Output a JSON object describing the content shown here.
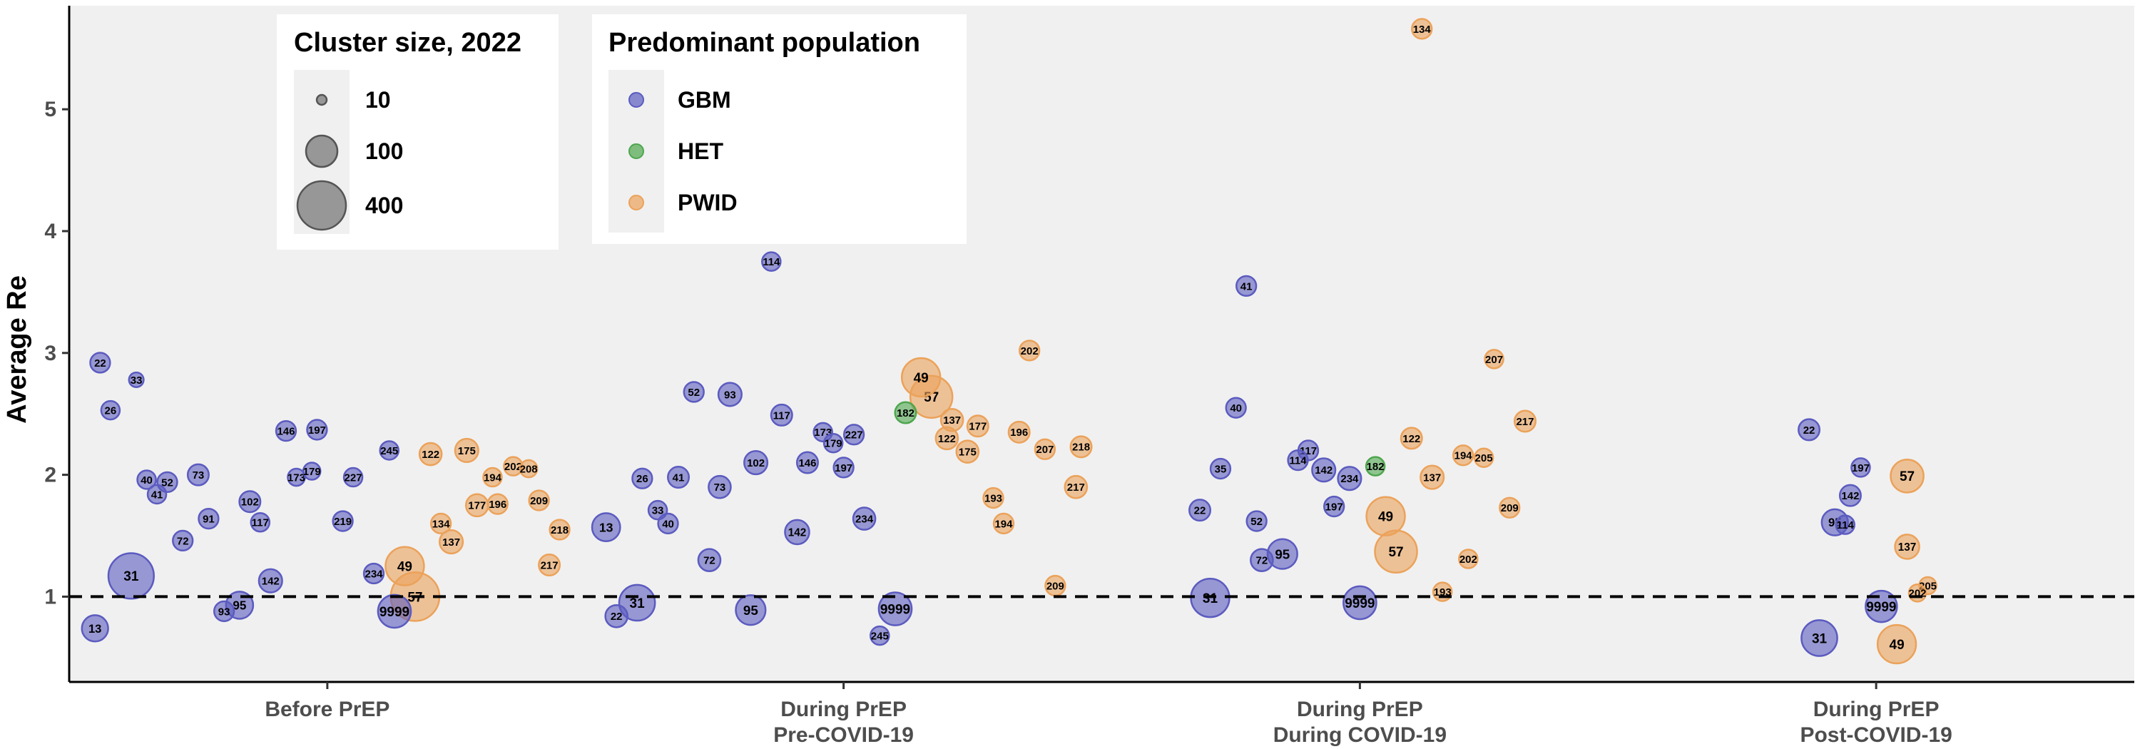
{
  "chart_data": {
    "type": "scatter",
    "ylabel": "Average Re",
    "xlabel": "",
    "ylim": [
      0.3,
      5.85
    ],
    "yticks": [
      1,
      2,
      3,
      4,
      5
    ],
    "reference_line": 1,
    "grid": false,
    "categories": [
      "Before PrEP",
      "During PrEP\nPre-COVID-19",
      "During PrEP\nDuring COVID-19",
      "During PrEP\nPost-COVID-19"
    ],
    "colors": {
      "GBM": "#5b5bc0",
      "HET": "#4ea64e",
      "PWID": "#eba25a"
    },
    "legend_size": {
      "title": "Cluster size, 2022",
      "entries": [
        {
          "label": "10",
          "value": 10
        },
        {
          "label": "100",
          "value": 100
        },
        {
          "label": "400",
          "value": 400
        }
      ]
    },
    "legend_population": {
      "title": "Predominant population",
      "entries": [
        "GBM",
        "HET",
        "PWID"
      ]
    },
    "series": [
      {
        "period": "Before PrEP",
        "points": [
          {
            "id": "22",
            "pop": "GBM",
            "offset": -0.44,
            "y": 2.92,
            "size": 40
          },
          {
            "id": "33",
            "pop": "GBM",
            "offset": -0.37,
            "y": 2.78,
            "size": 22
          },
          {
            "id": "26",
            "pop": "GBM",
            "offset": -0.42,
            "y": 2.53,
            "size": 35
          },
          {
            "id": "40",
            "pop": "GBM",
            "offset": -0.35,
            "y": 1.96,
            "size": 35
          },
          {
            "id": "52",
            "pop": "GBM",
            "offset": -0.31,
            "y": 1.94,
            "size": 40
          },
          {
            "id": "73",
            "pop": "GBM",
            "offset": -0.25,
            "y": 2.0,
            "size": 45
          },
          {
            "id": "41",
            "pop": "GBM",
            "offset": -0.33,
            "y": 1.84,
            "size": 35
          },
          {
            "id": "91",
            "pop": "GBM",
            "offset": -0.23,
            "y": 1.64,
            "size": 40
          },
          {
            "id": "102",
            "pop": "GBM",
            "offset": -0.15,
            "y": 1.78,
            "size": 45
          },
          {
            "id": "117",
            "pop": "GBM",
            "offset": -0.13,
            "y": 1.61,
            "size": 35
          },
          {
            "id": "72",
            "pop": "GBM",
            "offset": -0.28,
            "y": 1.46,
            "size": 40
          },
          {
            "id": "146",
            "pop": "GBM",
            "offset": -0.08,
            "y": 2.36,
            "size": 40
          },
          {
            "id": "197",
            "pop": "GBM",
            "offset": -0.02,
            "y": 2.37,
            "size": 40
          },
          {
            "id": "173",
            "pop": "GBM",
            "offset": -0.06,
            "y": 1.98,
            "size": 30
          },
          {
            "id": "179",
            "pop": "GBM",
            "offset": -0.03,
            "y": 2.03,
            "size": 30
          },
          {
            "id": "227",
            "pop": "GBM",
            "offset": 0.05,
            "y": 1.98,
            "size": 35
          },
          {
            "id": "245",
            "pop": "GBM",
            "offset": 0.12,
            "y": 2.2,
            "size": 35
          },
          {
            "id": "219",
            "pop": "GBM",
            "offset": 0.03,
            "y": 1.62,
            "size": 40
          },
          {
            "id": "234",
            "pop": "GBM",
            "offset": 0.09,
            "y": 1.19,
            "size": 40
          },
          {
            "id": "142",
            "pop": "GBM",
            "offset": -0.11,
            "y": 1.13,
            "size": 55
          },
          {
            "id": "31",
            "pop": "GBM",
            "offset": -0.38,
            "y": 1.17,
            "size": 210
          },
          {
            "id": "13",
            "pop": "GBM",
            "offset": -0.45,
            "y": 0.74,
            "size": 70
          },
          {
            "id": "93",
            "pop": "GBM",
            "offset": -0.2,
            "y": 0.88,
            "size": 40
          },
          {
            "id": "95",
            "pop": "GBM",
            "offset": -0.17,
            "y": 0.93,
            "size": 75
          },
          {
            "id": "9999",
            "pop": "GBM",
            "offset": 0.13,
            "y": 0.88,
            "size": 110
          },
          {
            "id": "122",
            "pop": "PWID",
            "offset": 0.2,
            "y": 2.17,
            "size": 50
          },
          {
            "id": "175",
            "pop": "PWID",
            "offset": 0.27,
            "y": 2.2,
            "size": 55
          },
          {
            "id": "202",
            "pop": "PWID",
            "offset": 0.36,
            "y": 2.07,
            "size": 35
          },
          {
            "id": "208",
            "pop": "PWID",
            "offset": 0.39,
            "y": 2.05,
            "size": 30
          },
          {
            "id": "194",
            "pop": "PWID",
            "offset": 0.32,
            "y": 1.98,
            "size": 35
          },
          {
            "id": "209",
            "pop": "PWID",
            "offset": 0.41,
            "y": 1.79,
            "size": 40
          },
          {
            "id": "177",
            "pop": "PWID",
            "offset": 0.29,
            "y": 1.75,
            "size": 50
          },
          {
            "id": "196",
            "pop": "PWID",
            "offset": 0.33,
            "y": 1.76,
            "size": 40
          },
          {
            "id": "134",
            "pop": "PWID",
            "offset": 0.22,
            "y": 1.6,
            "size": 40
          },
          {
            "id": "137",
            "pop": "PWID",
            "offset": 0.24,
            "y": 1.45,
            "size": 55
          },
          {
            "id": "218",
            "pop": "PWID",
            "offset": 0.45,
            "y": 1.55,
            "size": 40
          },
          {
            "id": "217",
            "pop": "PWID",
            "offset": 0.43,
            "y": 1.26,
            "size": 45
          },
          {
            "id": "49",
            "pop": "PWID",
            "offset": 0.15,
            "y": 1.25,
            "size": 150
          },
          {
            "id": "57",
            "pop": "PWID",
            "offset": 0.17,
            "y": 1.0,
            "size": 240
          }
        ]
      },
      {
        "period": "During PrEP\nPre-COVID-19",
        "points": [
          {
            "id": "114",
            "pop": "GBM",
            "offset": -0.14,
            "y": 3.75,
            "size": 35
          },
          {
            "id": "52",
            "pop": "GBM",
            "offset": -0.29,
            "y": 2.68,
            "size": 40
          },
          {
            "id": "93",
            "pop": "GBM",
            "offset": -0.22,
            "y": 2.66,
            "size": 55
          },
          {
            "id": "117",
            "pop": "GBM",
            "offset": -0.12,
            "y": 2.49,
            "size": 45
          },
          {
            "id": "173",
            "pop": "GBM",
            "offset": -0.04,
            "y": 2.35,
            "size": 35
          },
          {
            "id": "179",
            "pop": "GBM",
            "offset": -0.02,
            "y": 2.26,
            "size": 35
          },
          {
            "id": "227",
            "pop": "GBM",
            "offset": 0.02,
            "y": 2.33,
            "size": 40
          },
          {
            "id": "102",
            "pop": "GBM",
            "offset": -0.17,
            "y": 2.1,
            "size": 55
          },
          {
            "id": "146",
            "pop": "GBM",
            "offset": -0.07,
            "y": 2.1,
            "size": 45
          },
          {
            "id": "197",
            "pop": "GBM",
            "offset": -0.0,
            "y": 2.06,
            "size": 40
          },
          {
            "id": "26",
            "pop": "GBM",
            "offset": -0.39,
            "y": 1.97,
            "size": 40
          },
          {
            "id": "41",
            "pop": "GBM",
            "offset": -0.32,
            "y": 1.98,
            "size": 45
          },
          {
            "id": "73",
            "pop": "GBM",
            "offset": -0.24,
            "y": 1.9,
            "size": 50
          },
          {
            "id": "33",
            "pop": "GBM",
            "offset": -0.36,
            "y": 1.71,
            "size": 35
          },
          {
            "id": "40",
            "pop": "GBM",
            "offset": -0.34,
            "y": 1.6,
            "size": 40
          },
          {
            "id": "13",
            "pop": "GBM",
            "offset": -0.46,
            "y": 1.57,
            "size": 80
          },
          {
            "id": "142",
            "pop": "GBM",
            "offset": -0.09,
            "y": 1.53,
            "size": 60
          },
          {
            "id": "234",
            "pop": "GBM",
            "offset": 0.04,
            "y": 1.64,
            "size": 50
          },
          {
            "id": "72",
            "pop": "GBM",
            "offset": -0.26,
            "y": 1.3,
            "size": 50
          },
          {
            "id": "22",
            "pop": "GBM",
            "offset": -0.44,
            "y": 0.84,
            "size": 50
          },
          {
            "id": "31",
            "pop": "GBM",
            "offset": -0.4,
            "y": 0.95,
            "size": 130
          },
          {
            "id": "95",
            "pop": "GBM",
            "offset": -0.18,
            "y": 0.89,
            "size": 90
          },
          {
            "id": "9999",
            "pop": "GBM",
            "offset": 0.1,
            "y": 0.9,
            "size": 110
          },
          {
            "id": "245",
            "pop": "GBM",
            "offset": 0.07,
            "y": 0.68,
            "size": 35
          },
          {
            "id": "182",
            "pop": "HET",
            "offset": 0.12,
            "y": 2.51,
            "size": 45
          },
          {
            "id": "49",
            "pop": "PWID",
            "offset": 0.15,
            "y": 2.8,
            "size": 150
          },
          {
            "id": "57",
            "pop": "PWID",
            "offset": 0.17,
            "y": 2.64,
            "size": 180
          },
          {
            "id": "137",
            "pop": "PWID",
            "offset": 0.21,
            "y": 2.45,
            "size": 50
          },
          {
            "id": "177",
            "pop": "PWID",
            "offset": 0.26,
            "y": 2.4,
            "size": 45
          },
          {
            "id": "122",
            "pop": "PWID",
            "offset": 0.2,
            "y": 2.3,
            "size": 50
          },
          {
            "id": "175",
            "pop": "PWID",
            "offset": 0.24,
            "y": 2.19,
            "size": 50
          },
          {
            "id": "202",
            "pop": "PWID",
            "offset": 0.36,
            "y": 3.02,
            "size": 40
          },
          {
            "id": "196",
            "pop": "PWID",
            "offset": 0.34,
            "y": 2.35,
            "size": 45
          },
          {
            "id": "207",
            "pop": "PWID",
            "offset": 0.39,
            "y": 2.21,
            "size": 40
          },
          {
            "id": "218",
            "pop": "PWID",
            "offset": 0.46,
            "y": 2.23,
            "size": 45
          },
          {
            "id": "193",
            "pop": "PWID",
            "offset": 0.29,
            "y": 1.81,
            "size": 40
          },
          {
            "id": "217",
            "pop": "PWID",
            "offset": 0.45,
            "y": 1.9,
            "size": 50
          },
          {
            "id": "194",
            "pop": "PWID",
            "offset": 0.31,
            "y": 1.6,
            "size": 40
          },
          {
            "id": "209",
            "pop": "PWID",
            "offset": 0.41,
            "y": 1.09,
            "size": 40
          }
        ]
      },
      {
        "period": "During PrEP\nDuring COVID-19",
        "points": [
          {
            "id": "134",
            "pop": "PWID",
            "offset": 0.12,
            "y": 5.66,
            "size": 40
          },
          {
            "id": "41",
            "pop": "GBM",
            "offset": -0.22,
            "y": 3.55,
            "size": 40
          },
          {
            "id": "40",
            "pop": "GBM",
            "offset": -0.24,
            "y": 2.55,
            "size": 40
          },
          {
            "id": "35",
            "pop": "GBM",
            "offset": -0.27,
            "y": 2.05,
            "size": 40
          },
          {
            "id": "117",
            "pop": "GBM",
            "offset": -0.1,
            "y": 2.2,
            "size": 40
          },
          {
            "id": "114",
            "pop": "GBM",
            "offset": -0.12,
            "y": 2.12,
            "size": 40
          },
          {
            "id": "142",
            "pop": "GBM",
            "offset": -0.07,
            "y": 2.04,
            "size": 55
          },
          {
            "id": "234",
            "pop": "GBM",
            "offset": -0.02,
            "y": 1.97,
            "size": 55
          },
          {
            "id": "197",
            "pop": "GBM",
            "offset": -0.05,
            "y": 1.74,
            "size": 40
          },
          {
            "id": "22",
            "pop": "GBM",
            "offset": -0.31,
            "y": 1.71,
            "size": 45
          },
          {
            "id": "52",
            "pop": "GBM",
            "offset": -0.2,
            "y": 1.62,
            "size": 40
          },
          {
            "id": "72",
            "pop": "GBM",
            "offset": -0.19,
            "y": 1.3,
            "size": 50
          },
          {
            "id": "95",
            "pop": "GBM",
            "offset": -0.15,
            "y": 1.35,
            "size": 90
          },
          {
            "id": "31",
            "pop": "GBM",
            "offset": -0.29,
            "y": 0.99,
            "size": 150
          },
          {
            "id": "9999",
            "pop": "GBM",
            "offset": 0.0,
            "y": 0.95,
            "size": 110
          },
          {
            "id": "182",
            "pop": "HET",
            "offset": 0.03,
            "y": 2.07,
            "size": 35
          },
          {
            "id": "122",
            "pop": "PWID",
            "offset": 0.1,
            "y": 2.3,
            "size": 45
          },
          {
            "id": "194",
            "pop": "PWID",
            "offset": 0.2,
            "y": 2.16,
            "size": 40
          },
          {
            "id": "205",
            "pop": "PWID",
            "offset": 0.24,
            "y": 2.14,
            "size": 35
          },
          {
            "id": "137",
            "pop": "PWID",
            "offset": 0.14,
            "y": 1.98,
            "size": 55
          },
          {
            "id": "207",
            "pop": "PWID",
            "offset": 0.26,
            "y": 2.95,
            "size": 35
          },
          {
            "id": "217",
            "pop": "PWID",
            "offset": 0.32,
            "y": 2.44,
            "size": 45
          },
          {
            "id": "209",
            "pop": "PWID",
            "offset": 0.29,
            "y": 1.73,
            "size": 40
          },
          {
            "id": "49",
            "pop": "PWID",
            "offset": 0.05,
            "y": 1.66,
            "size": 150
          },
          {
            "id": "57",
            "pop": "PWID",
            "offset": 0.07,
            "y": 1.37,
            "size": 180
          },
          {
            "id": "202",
            "pop": "PWID",
            "offset": 0.21,
            "y": 1.31,
            "size": 35
          },
          {
            "id": "193",
            "pop": "PWID",
            "offset": 0.16,
            "y": 1.04,
            "size": 35
          }
        ]
      },
      {
        "period": "During PrEP\nPost-COVID-19",
        "points": [
          {
            "id": "22",
            "pop": "GBM",
            "offset": -0.13,
            "y": 2.37,
            "size": 45
          },
          {
            "id": "197",
            "pop": "GBM",
            "offset": -0.03,
            "y": 2.06,
            "size": 35
          },
          {
            "id": "142",
            "pop": "GBM",
            "offset": -0.05,
            "y": 1.83,
            "size": 45
          },
          {
            "id": "95",
            "pop": "GBM",
            "offset": -0.08,
            "y": 1.61,
            "size": 70
          },
          {
            "id": "114",
            "pop": "GBM",
            "offset": -0.06,
            "y": 1.59,
            "size": 35
          },
          {
            "id": "31",
            "pop": "GBM",
            "offset": -0.11,
            "y": 0.66,
            "size": 130
          },
          {
            "id": "9999",
            "pop": "GBM",
            "offset": 0.01,
            "y": 0.92,
            "size": 100
          },
          {
            "id": "57",
            "pop": "PWID",
            "offset": 0.06,
            "y": 1.99,
            "size": 110
          },
          {
            "id": "137",
            "pop": "PWID",
            "offset": 0.06,
            "y": 1.41,
            "size": 60
          },
          {
            "id": "205",
            "pop": "PWID",
            "offset": 0.1,
            "y": 1.09,
            "size": 30
          },
          {
            "id": "202",
            "pop": "PWID",
            "offset": 0.08,
            "y": 1.03,
            "size": 30
          },
          {
            "id": "49",
            "pop": "PWID",
            "offset": 0.04,
            "y": 0.61,
            "size": 150
          }
        ]
      }
    ]
  }
}
